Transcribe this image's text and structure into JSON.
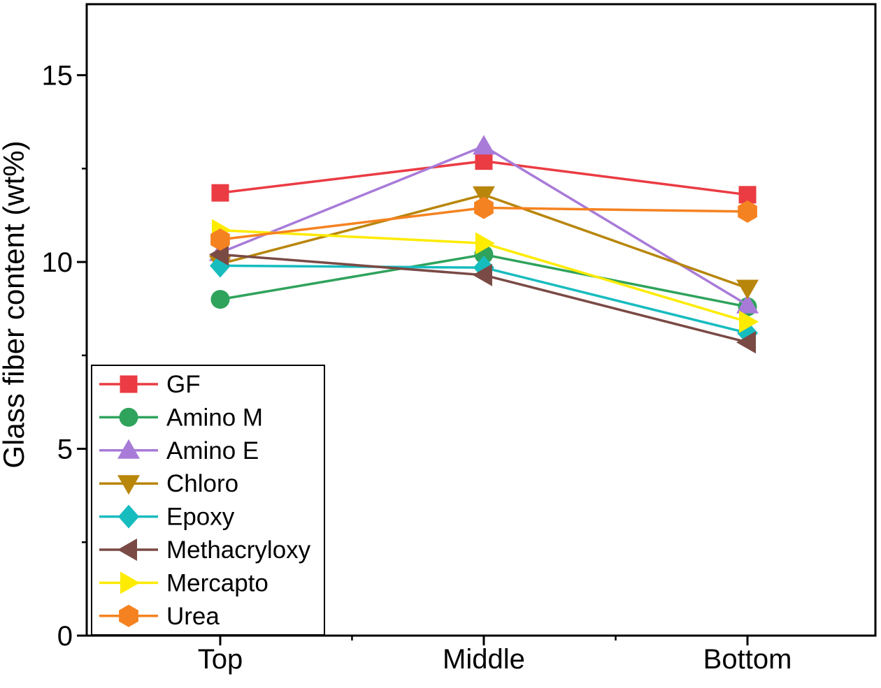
{
  "figure": {
    "background": "#ffffff",
    "frame_color": "#000000"
  },
  "chart_data": {
    "type": "line",
    "title": "",
    "xlabel": "",
    "ylabel": "Glass fiber content (wt%)",
    "categories": [
      "Top",
      "Middle",
      "Bottom"
    ],
    "series": [
      {
        "name": "GF",
        "marker": "square",
        "color": "#eb3b43",
        "values": [
          11.85,
          12.7,
          11.8
        ]
      },
      {
        "name": "Amino M",
        "marker": "circle",
        "color": "#2fa35c",
        "values": [
          9.0,
          10.2,
          8.8
        ]
      },
      {
        "name": "Amino E",
        "marker": "triangle-up",
        "color": "#a87bd8",
        "values": [
          10.25,
          13.1,
          8.85
        ]
      },
      {
        "name": "Chloro",
        "marker": "triangle-down",
        "color": "#b8860b",
        "values": [
          9.95,
          11.8,
          9.3
        ]
      },
      {
        "name": "Epoxy",
        "marker": "diamond",
        "color": "#17bcbf",
        "values": [
          9.9,
          9.85,
          8.1
        ]
      },
      {
        "name": "Methacryloxy",
        "marker": "triangle-left",
        "color": "#7a4a45",
        "values": [
          10.2,
          9.65,
          7.85
        ]
      },
      {
        "name": "Mercapto",
        "marker": "triangle-right",
        "color": "#fdeb00",
        "values": [
          10.85,
          10.5,
          8.4
        ]
      },
      {
        "name": "Urea",
        "marker": "hexagon",
        "color": "#f58220",
        "values": [
          10.6,
          11.45,
          11.35
        ]
      }
    ],
    "yticks": [
      0,
      5,
      10,
      15
    ],
    "minor_yticks": [
      2.5,
      7.5,
      12.5
    ],
    "ylim": [
      0,
      16.9
    ],
    "grid": false,
    "legend_position": "bottom-left",
    "legend_entries": [
      "GF",
      "Amino M",
      "Amino E",
      "Chloro",
      "Epoxy",
      "Methacryloxy",
      "Mercapto",
      "Urea"
    ]
  }
}
